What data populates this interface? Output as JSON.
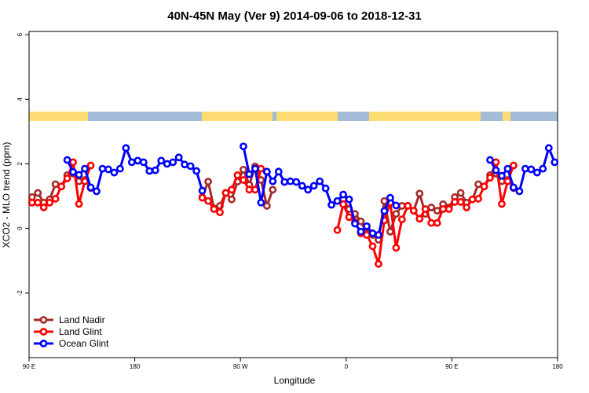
{
  "chart_data": {
    "type": "line",
    "title": "40N-45N May (Ver 9)   2014-09-06 to 2018-12-31",
    "xlabel": "Longitude",
    "ylabel": "XCO2 - MLO trend (ppm)",
    "xlim": [
      90,
      540
    ],
    "xticks": [
      {
        "value": 90,
        "label": "90 E"
      },
      180,
      {
        "value": 270,
        "label": "90 W"
      },
      {
        "value": 360,
        "label": "0"
      },
      {
        "value": 450,
        "label": "90 E"
      },
      {
        "value": 540,
        "label": "180"
      }
    ],
    "ylim": [
      -4,
      6.1
    ],
    "yticks": [
      -2,
      0,
      2,
      4,
      6
    ],
    "legend": "bottom-left",
    "x": [
      92.5,
      97.5,
      102.5,
      107.5,
      112.5,
      117.5,
      122.5,
      127.5,
      132.5,
      137.5,
      142.5,
      147.5,
      152.5,
      157.5,
      162.5,
      167.5,
      172.5,
      177.5,
      182.5,
      187.5,
      192.5,
      197.5,
      202.5,
      207.5,
      212.5,
      217.5,
      222.5,
      227.5,
      232.5,
      237.5,
      242.5,
      247.5,
      252.5,
      257.5,
      262.5,
      267.5,
      272.5,
      277.5,
      282.5,
      287.5,
      292.5,
      297.5,
      302.5,
      307.5,
      312.5,
      317.5,
      322.5,
      327.5,
      332.5,
      337.5,
      342.5,
      347.5,
      352.5,
      357.5,
      362.5,
      367.5,
      372.5,
      377.5,
      382.5,
      387.5,
      392.5,
      397.5,
      402.5,
      407.5,
      412.5,
      417.5,
      422.5,
      427.5,
      432.5,
      437.5,
      442.5,
      447.5,
      452.5,
      457.5,
      462.5,
      467.5,
      472.5,
      477.5,
      482.5,
      487.5,
      492.5,
      497.5,
      502.5,
      507.5,
      512.5,
      517.5,
      522.5,
      527.5,
      532.5,
      537.5
    ],
    "series": [
      {
        "name": "Land Nadir",
        "color": "#a52a2a",
        "values": [
          0.97,
          1.1,
          0.8,
          0.9,
          1.37,
          1.3,
          1.65,
          1.7,
          1.46,
          1.5,
          1.25,
          null,
          null,
          null,
          null,
          null,
          null,
          null,
          null,
          null,
          null,
          null,
          null,
          null,
          null,
          null,
          null,
          null,
          null,
          0.97,
          1.45,
          0.62,
          0.7,
          1.1,
          0.9,
          1.45,
          1.82,
          1.35,
          1.92,
          1.5,
          0.7,
          1.2,
          null,
          null,
          null,
          null,
          null,
          null,
          null,
          null,
          null,
          null,
          null,
          0.9,
          0.6,
          0.45,
          0.22,
          -0.15,
          -0.2,
          -0.35,
          0.85,
          -0.1,
          0.45,
          0.7,
          0.7,
          0.55,
          1.08,
          0.45,
          0.65,
          0.55,
          0.75,
          0.65,
          0.97,
          1.1,
          0.8,
          0.9,
          1.37,
          1.3,
          1.65,
          1.7,
          1.46,
          1.5,
          1.25,
          null,
          null,
          null,
          null,
          null,
          null,
          null
        ]
      },
      {
        "name": "Land Glint",
        "color": "#ff0000",
        "values": [
          0.8,
          0.8,
          0.65,
          0.8,
          0.92,
          1.3,
          1.55,
          2.05,
          0.76,
          1.46,
          1.95,
          null,
          null,
          null,
          null,
          null,
          null,
          null,
          null,
          null,
          null,
          null,
          null,
          null,
          null,
          null,
          null,
          null,
          null,
          0.95,
          0.85,
          0.6,
          0.5,
          1.1,
          1.2,
          1.65,
          1.5,
          1.2,
          1.2,
          1.85,
          1.75,
          null,
          null,
          null,
          null,
          null,
          null,
          null,
          null,
          null,
          null,
          null,
          -0.05,
          0.75,
          0.35,
          0.2,
          -0.15,
          -0.2,
          -0.55,
          -1.1,
          0.25,
          0.8,
          -0.6,
          0.28,
          0.7,
          0.55,
          0.3,
          0.6,
          0.17,
          0.17,
          0.6,
          0.6,
          0.82,
          0.82,
          0.65,
          0.9,
          0.92,
          1.3,
          1.57,
          2.05,
          0.76,
          1.46,
          1.95,
          null,
          null,
          null,
          null,
          null,
          null,
          null
        ]
      },
      {
        "name": "Ocean Glint",
        "color": "#0000ff",
        "values": [
          null,
          null,
          null,
          null,
          null,
          null,
          2.12,
          1.75,
          1.66,
          1.85,
          1.27,
          1.15,
          1.85,
          1.83,
          1.73,
          1.85,
          2.49,
          2.05,
          2.1,
          2.05,
          1.78,
          1.8,
          2.1,
          2.0,
          2.05,
          2.2,
          1.98,
          1.93,
          1.78,
          1.17,
          null,
          null,
          null,
          null,
          null,
          null,
          2.54,
          1.68,
          1.85,
          0.8,
          1.76,
          1.46,
          1.76,
          1.44,
          1.46,
          1.44,
          1.32,
          1.2,
          1.32,
          1.46,
          1.24,
          0.73,
          0.85,
          1.05,
          0.9,
          0.15,
          -0.1,
          0.07,
          -0.15,
          -0.2,
          0.54,
          0.95,
          0.71,
          null,
          null,
          null,
          null,
          null,
          null,
          null,
          null,
          null,
          null,
          null,
          null,
          null,
          null,
          null,
          2.12,
          1.8,
          1.63,
          1.85,
          1.27,
          1.15,
          1.85,
          1.83,
          1.73,
          1.85,
          2.49,
          2.05
        ]
      }
    ]
  }
}
